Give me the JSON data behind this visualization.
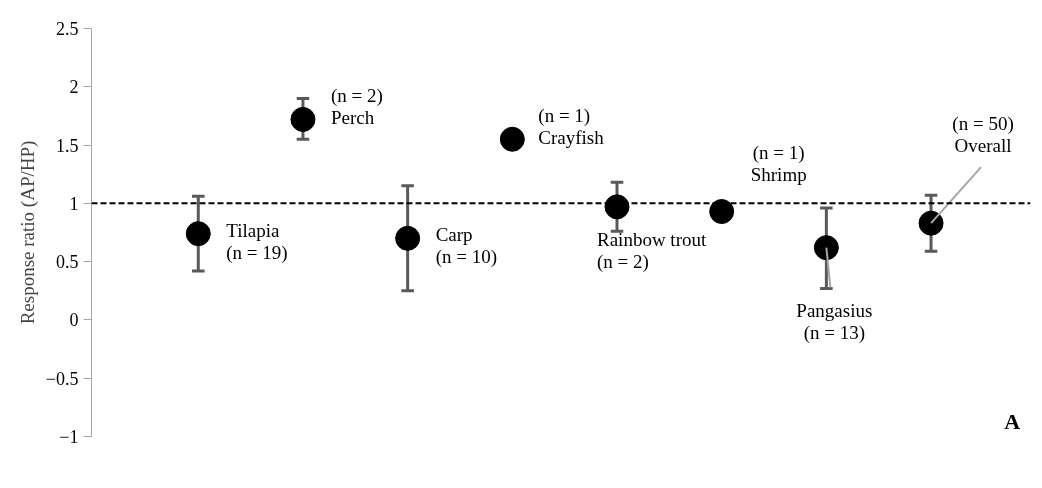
{
  "chart_data": {
    "type": "scatter",
    "ylabel": "Response ratio (AP/HP)",
    "categories": [
      null,
      null,
      null,
      null,
      null,
      null,
      null,
      null
    ],
    "values": [
      0.74,
      1.72,
      0.7,
      1.55,
      0.97,
      0.93,
      0.62,
      0.83
    ],
    "errors": [
      [
        0.42,
        1.06
      ],
      [
        1.55,
        1.9
      ],
      [
        0.25,
        1.15
      ],
      null,
      [
        0.76,
        1.18
      ],
      null,
      [
        0.27,
        0.96
      ],
      [
        0.59,
        1.07
      ]
    ],
    "color": "#000000",
    "marker": "circle",
    "ylim": [
      -1,
      2.5
    ],
    "yticks": [
      -1,
      -0.5,
      0,
      0.5,
      1,
      1.5,
      2,
      2.5
    ],
    "tick_labels": "y",
    "grid": false,
    "ref_lines": [
      {
        "axis": "y",
        "value": 1,
        "label": null,
        "color": "#000000",
        "line_style": "dashed"
      }
    ],
    "annotations": [
      "Tilapia\n(n = 19)",
      "(n = 2)\nPerch",
      "Carp\n(n = 10)",
      "(n = 1)\nCrayfish",
      "Rainbow trout\n(n = 2)",
      "(n = 1)\nShrimp",
      "Pangasius\n(n = 13)",
      "(n = 50)\nOverall",
      "A"
    ]
  }
}
